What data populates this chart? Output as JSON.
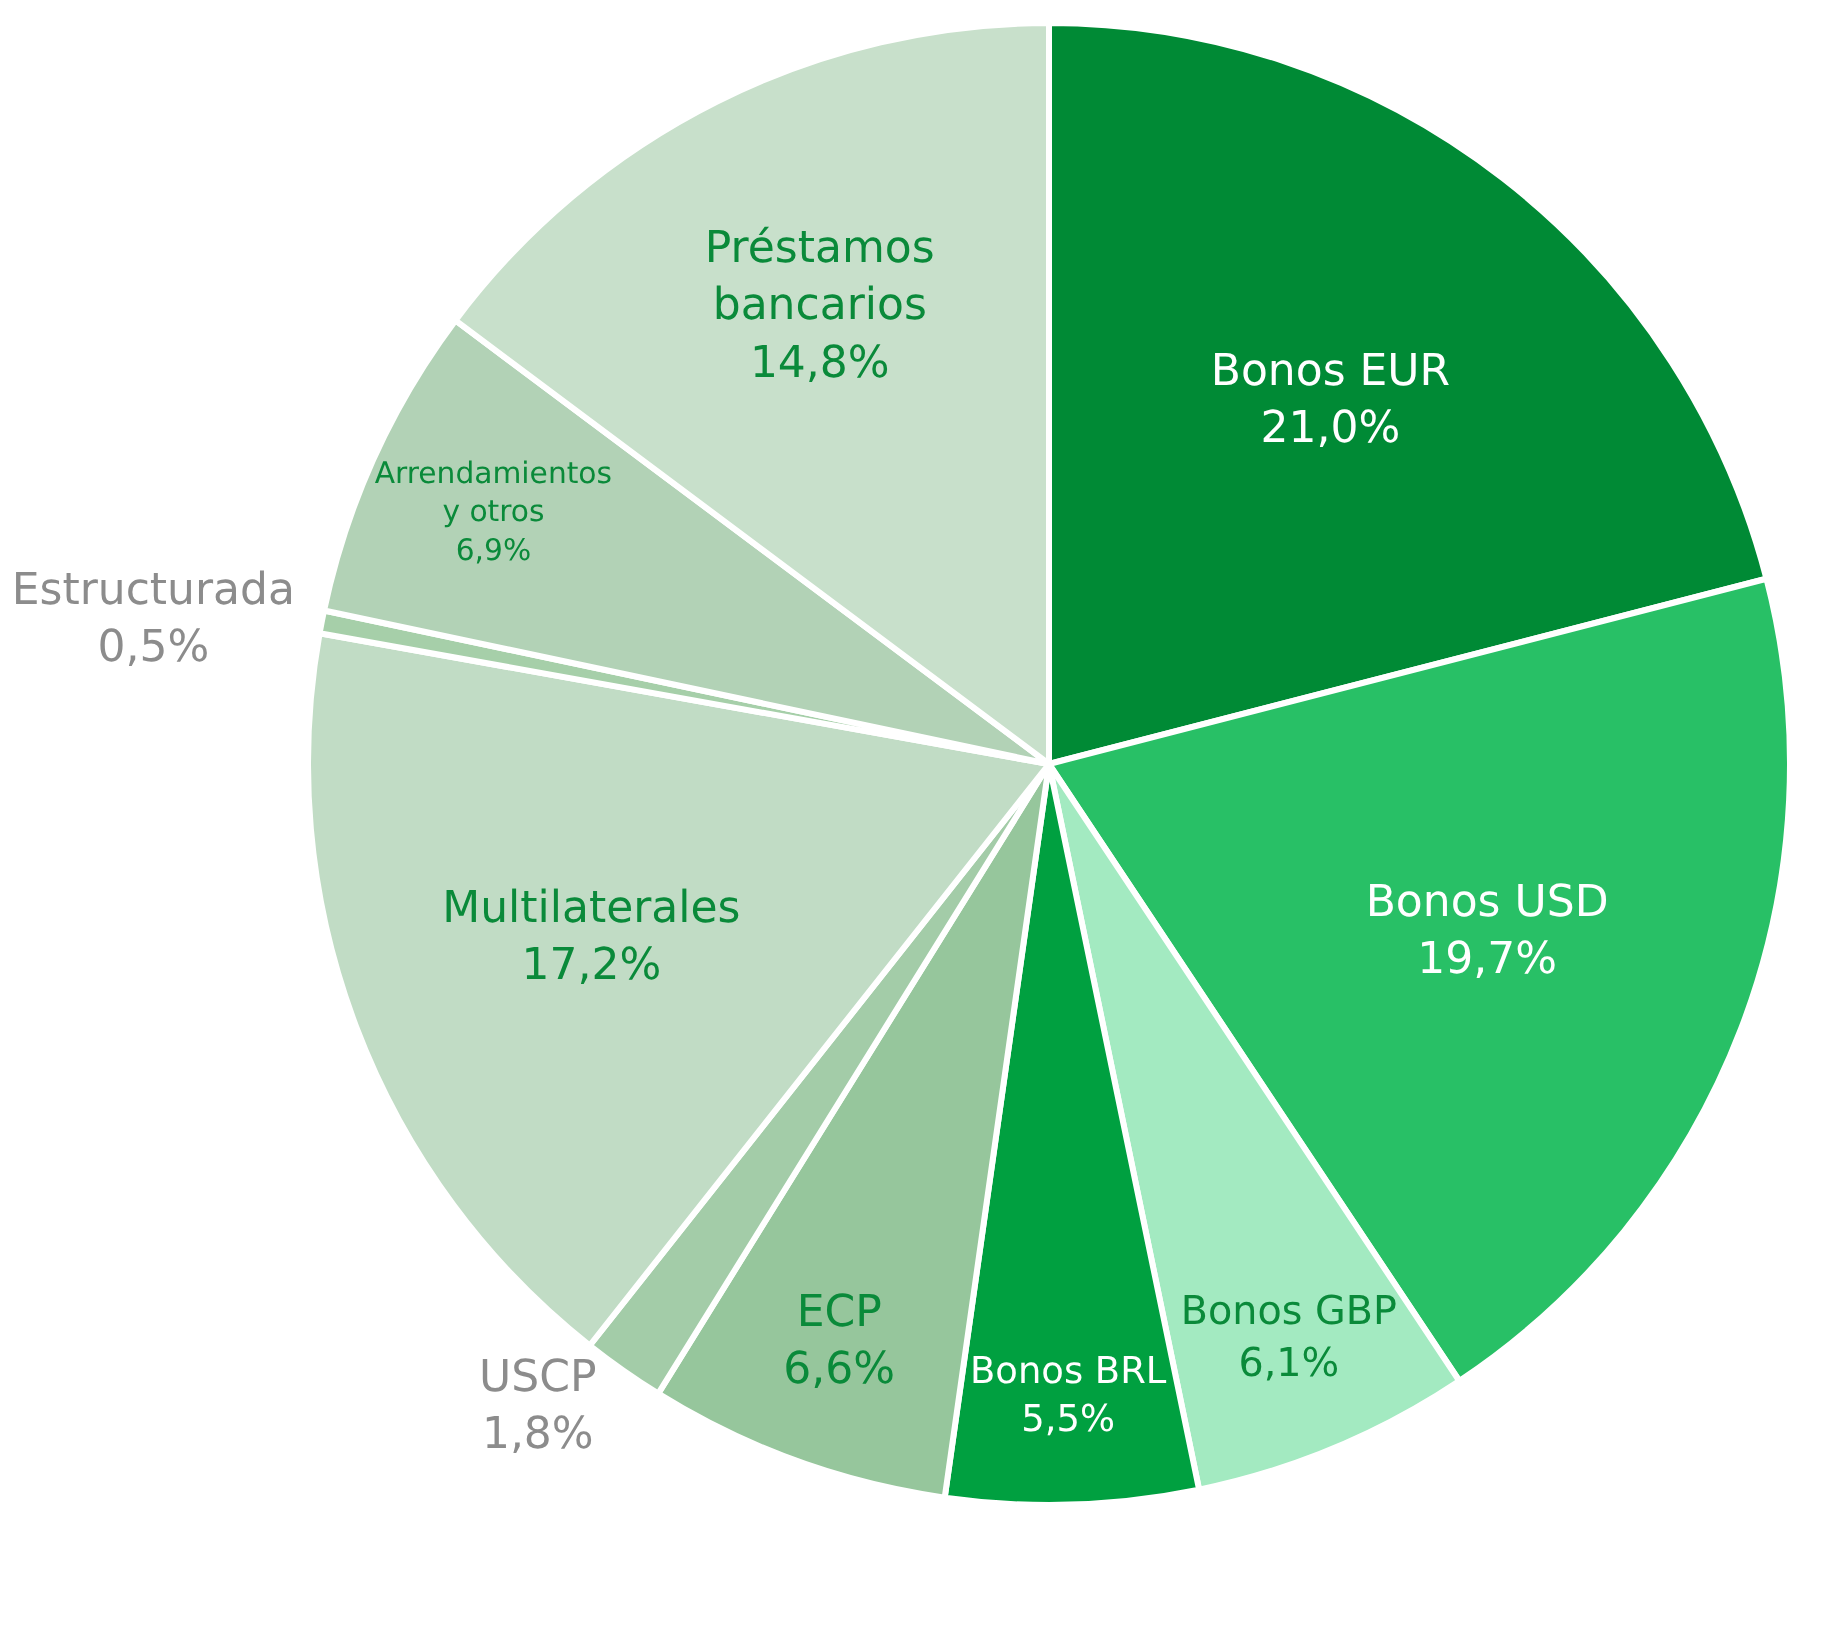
{
  "chart_data": {
    "type": "pie",
    "categories": [
      "Bonos EUR",
      "Bonos USD",
      "Bonos GBP",
      "Bonos BRL",
      "ECP",
      "USCP",
      "Multilaterales",
      "Estructurada",
      "Arrendamientos y otros",
      "Préstamos bancarios"
    ],
    "values": [
      21.0,
      19.7,
      6.1,
      5.5,
      6.6,
      1.8,
      17.2,
      0.5,
      6.9,
      14.8
    ],
    "value_labels": [
      "21,0%",
      "19,7%",
      "6,1%",
      "5,5%",
      "6,6%",
      "1,8%",
      "17,2%",
      "0,5%",
      "6,9%",
      "14,8%"
    ],
    "colors": [
      "#008a35",
      "#28c066",
      "#a3eac1",
      "#00a040",
      "#96c69c",
      "#a3cca8",
      "#c1dcc5",
      "#a6cfa9",
      "#b2d2b6",
      "#c8e0cb"
    ],
    "legend": false
  }
}
